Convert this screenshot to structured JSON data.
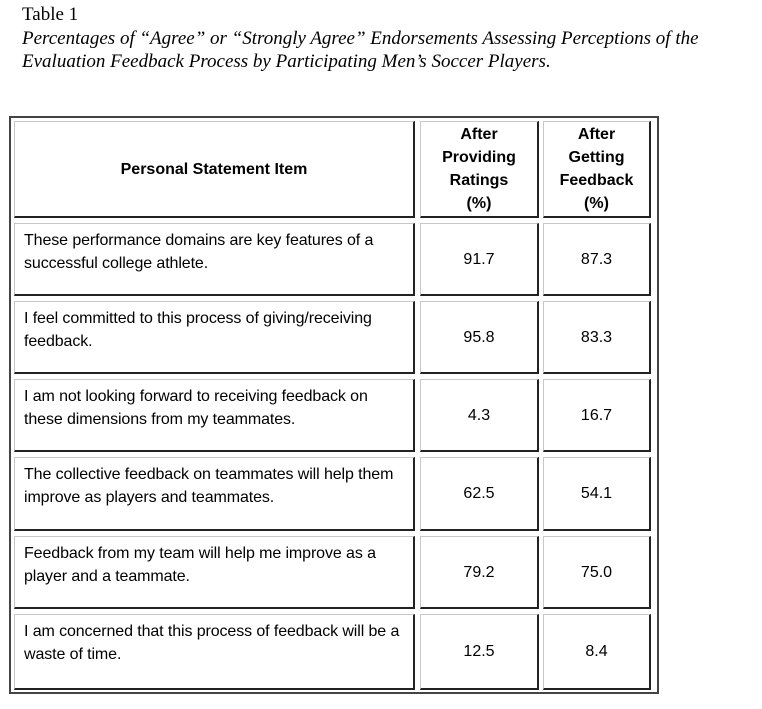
{
  "table": {
    "label": "Table 1",
    "caption": "Percentages of “Agree” or “Strongly Agree” Endorsements Assessing Perceptions of the Evaluation Feedback Process by Participating Men’s Soccer Players.",
    "caption_lines": [
      "Percentages of “Agree” or “Strongly Agree” Endorsements Assessing Perceptions of the",
      "Evaluation Feedback Process by Participating Men’s Soccer Players."
    ],
    "headers": {
      "item": "Personal Statement Item",
      "after_providing": "After\nProviding\nRatings\n(%)",
      "after_getting": "After\nGetting\nFeedback\n(%)"
    },
    "rows": [
      {
        "item": "These performance domains are key features of a successful college athlete.",
        "after_providing": "91.7",
        "after_getting": "87.3"
      },
      {
        "item": "I feel committed to this process of giving/receiving feedback.",
        "after_providing": "95.8",
        "after_getting": "83.3"
      },
      {
        "item": "I am not looking forward to receiving feedback on these dimensions from my teammates.",
        "after_providing": "4.3",
        "after_getting": "16.7"
      },
      {
        "item": "The collective feedback on teammates will help them improve as players and teammates.",
        "after_providing": "62.5",
        "after_getting": "54.1"
      },
      {
        "item": "Feedback from my team will help me improve as a player and a teammate.",
        "after_providing": "79.2",
        "after_getting": "75.0"
      },
      {
        "item": "I am concerned that this process of feedback will be a waste of time.",
        "after_providing": "12.5",
        "after_getting": "8.4"
      }
    ]
  }
}
